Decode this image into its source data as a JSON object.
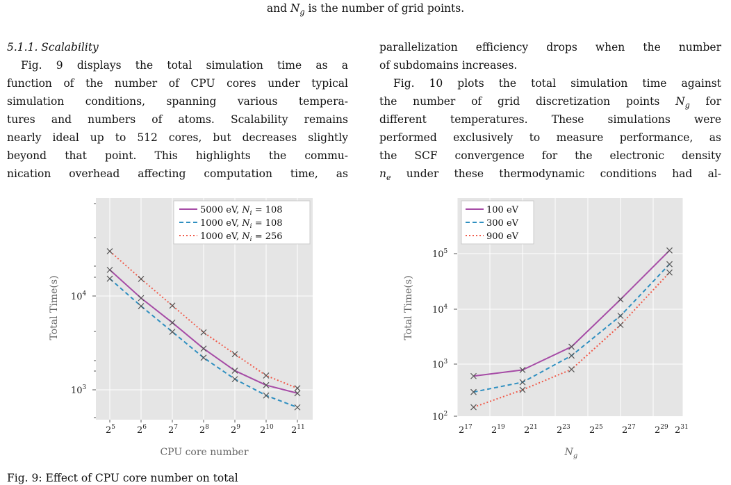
{
  "caption_top": "and N_g is the number of grid points.",
  "section_heading": "5.1.1. Scalability",
  "left_col": [
    "Fig. 9 displays the total simulation time as a",
    "function of the number of CPU cores under typical",
    "simulation conditions, spanning various tempera-",
    "tures and numbers of atoms. Scalability remains",
    "nearly ideal up to 512 cores, but decreases slightly",
    "beyond that point. This highlights the commu-",
    "nication overhead affecting computation time, as"
  ],
  "right_col": [
    "parallelization efficiency drops when the number",
    "of subdomains increases.",
    "Fig. 10 plots the total simulation time against",
    "the number of grid discretization points N_g for",
    "different temperatures. These simulations were",
    "performed exclusively to measure performance, as",
    "the SCF convergence for the electronic density",
    "n_e under these thermodynamic conditions had al-"
  ],
  "bottom_fragment": "Fig. 9: Effect of CPU core number on total",
  "colors": {
    "purple": "#a64ca6",
    "blue": "#2f8fc0",
    "red": "#f05a4a",
    "bg": "#e5e5e5",
    "marker": "#555555"
  },
  "chart_data": [
    {
      "type": "line",
      "xlabel": "CPU core number",
      "ylabel": "Total Time(s)",
      "x_scale": "log2",
      "y_scale": "log10",
      "x": [
        32,
        64,
        128,
        256,
        512,
        1024,
        2048
      ],
      "x_tick_labels": [
        "2^5",
        "2^6",
        "2^7",
        "2^8",
        "2^9",
        "2^10",
        "2^11"
      ],
      "y_tick_labels": [
        "10^3",
        "10^4"
      ],
      "ylim": [
        500,
        40000
      ],
      "legend_position": "top-right",
      "series": [
        {
          "name": "5000 eV, N_i = 108",
          "style": "solid",
          "color": "#a64ca6",
          "values": [
            19000,
            9500,
            5200,
            2750,
            1600,
            1120,
            920
          ]
        },
        {
          "name": "1000 eV, N_i = 108",
          "style": "dashed",
          "color": "#2f8fc0",
          "values": [
            15300,
            7800,
            4150,
            2200,
            1300,
            870,
            650
          ]
        },
        {
          "name": "1000 eV, N_i = 256",
          "style": "dotted",
          "color": "#f05a4a",
          "values": [
            30000,
            15200,
            7900,
            4100,
            2400,
            1420,
            1040
          ]
        }
      ]
    },
    {
      "type": "line",
      "xlabel": "N_g",
      "ylabel": "Total Time(s)",
      "x_scale": "log2",
      "y_scale": "log10",
      "x_exponents": [
        18,
        21,
        24,
        27,
        30
      ],
      "x_tick_labels": [
        "2^17",
        "2^19",
        "2^21",
        "2^23",
        "2^25",
        "2^27",
        "2^29",
        "2^31"
      ],
      "y_tick_labels": [
        "10^2",
        "10^3",
        "10^4",
        "10^5"
      ],
      "ylim": [
        100,
        150000
      ],
      "legend_position": "top-left",
      "series": [
        {
          "name": "100 eV",
          "style": "solid",
          "color": "#a64ca6",
          "values": [
            620,
            800,
            2100,
            15000,
            115000
          ]
        },
        {
          "name": "300 eV",
          "style": "dashed",
          "color": "#2f8fc0",
          "values": [
            320,
            480,
            1450,
            7600,
            65000
          ]
        },
        {
          "name": "900 eV",
          "style": "dotted",
          "color": "#f05a4a",
          "values": [
            170,
            350,
            820,
            5200,
            46000
          ]
        }
      ]
    }
  ]
}
